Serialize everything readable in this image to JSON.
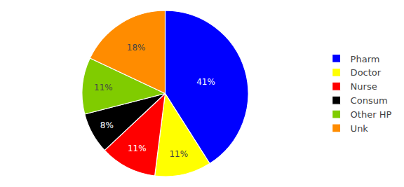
{
  "chart_data": {
    "type": "pie",
    "categories": [
      "Pharm",
      "Doctor",
      "Nurse",
      "Consum",
      "Other HP",
      "Unk"
    ],
    "values": [
      41,
      11,
      11,
      8,
      11,
      18
    ],
    "value_labels": [
      "41%",
      "11%",
      "11%",
      "8%",
      "11%",
      "18%"
    ],
    "colors": [
      "#0000FF",
      "#FFFF00",
      "#FF0000",
      "#000000",
      "#80CC00",
      "#FF8C00"
    ],
    "legend": "right"
  }
}
